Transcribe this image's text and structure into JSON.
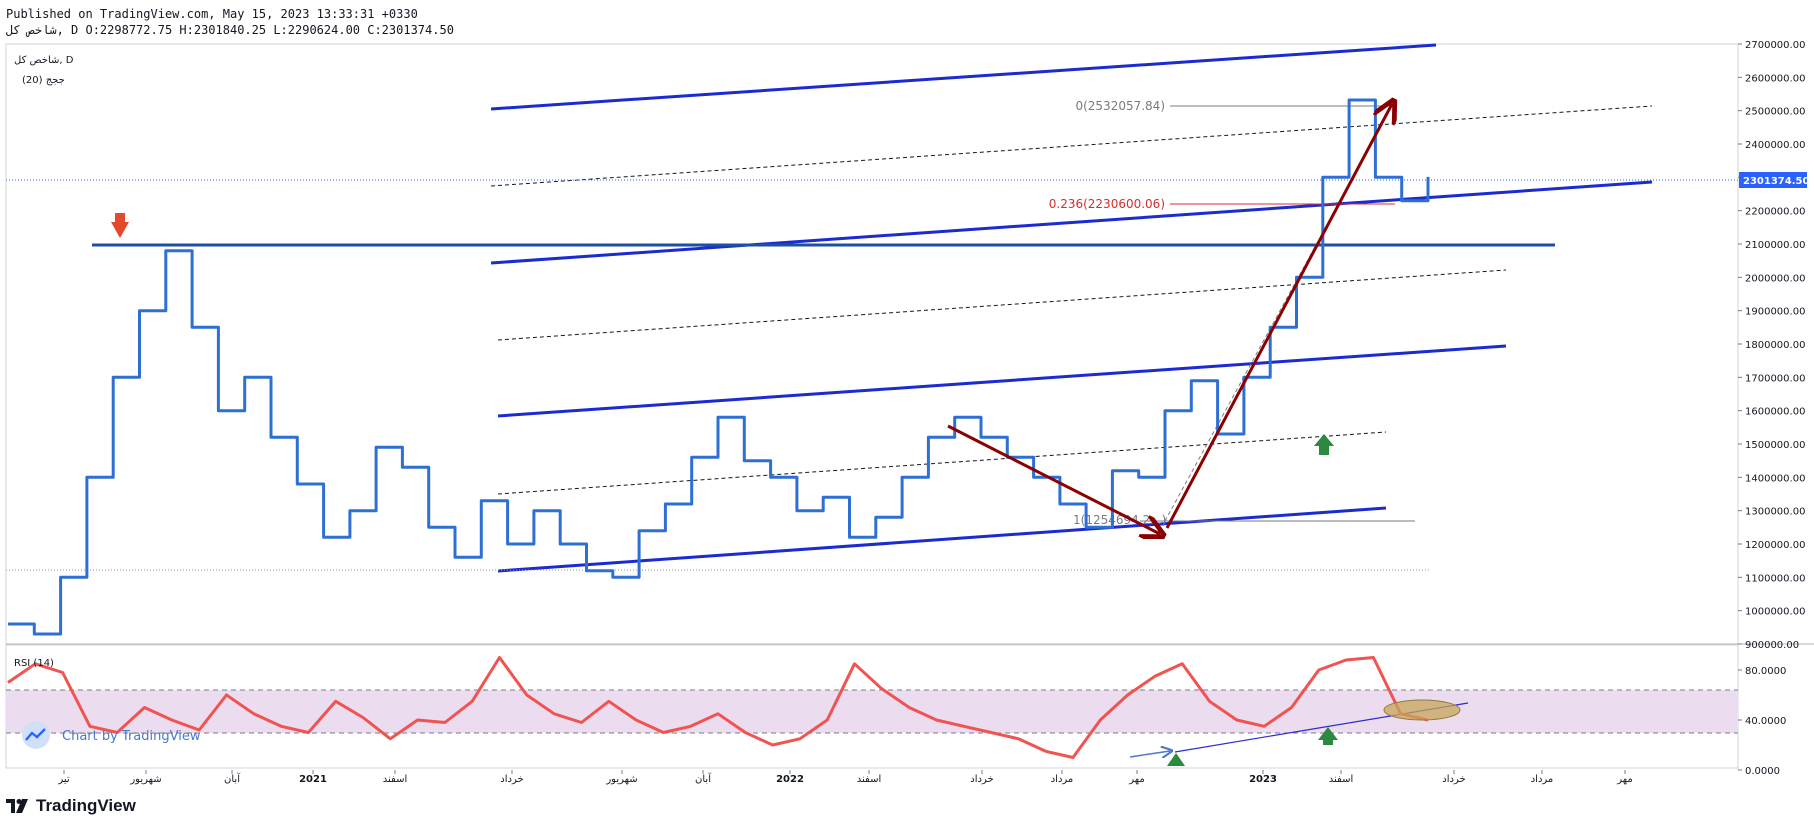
{
  "header": {
    "published": "Published on TradingView.com, May 15, 2023 13:33:31 +0330",
    "ohlc": "شاخص كل, D O:2298772.75 H:2301840.25 L:2290624.00 C:2301374.50"
  },
  "legend": {
    "symbol": "شاخص كل, D",
    "indicator": "ججج (20)"
  },
  "rsi_label": "RSI (14)",
  "watermark": "Chart by TradingView",
  "brand": "TradingView",
  "colors": {
    "price": "#2e6fd4",
    "rsi": "#f05350",
    "channel": "#1b2bd0",
    "arrow": "#8b0000",
    "hline": "#1e4fa0",
    "band": "#ecdcef",
    "last_price_bg": "#2962ff",
    "fib": "#d32f2f"
  },
  "annotations": {
    "fib0": "0(2532057.84)",
    "fib236": "0.236(2230600.06)",
    "fib1": "1(1254694.2...)",
    "last_price": "2301374.50"
  },
  "chart_data": [
    {
      "type": "line",
      "title": "",
      "series": [
        {
          "values": [
            960000,
            930000,
            1100000,
            1400000,
            1700000,
            1900000,
            2080000,
            1850000,
            1600000,
            1700000,
            1520000,
            1380000,
            1220000,
            1300000,
            1490000,
            1430000,
            1250000,
            1160000,
            1330000,
            1200000,
            1300000,
            1200000,
            1120000,
            1100000,
            1240000,
            1320000,
            1460000,
            1580000,
            1450000,
            1400000,
            1300000,
            1340000,
            1220000,
            1280000,
            1400000,
            1520000,
            1580000,
            1520000,
            1460000,
            1400000,
            1320000,
            1250000,
            1420000,
            1400000,
            1600000,
            1690000,
            1530000,
            1700000,
            1850000,
            2000000,
            2300000,
            2532058,
            2300000,
            2230000,
            2301374
          ]
        }
      ],
      "ylim": [
        900000,
        2700000
      ],
      "y_ticks": [
        "2700000.00",
        "2600000.00",
        "2500000.00",
        "2400000.00",
        "2300000.00",
        "2200000.00",
        "2100000.00",
        "2000000.00",
        "1900000.00",
        "1800000.00",
        "1700000.00",
        "1600000.00",
        "1500000.00",
        "1400000.00",
        "1300000.00",
        "1200000.00",
        "1100000.00",
        "1000000.00",
        "900000.00"
      ]
    },
    {
      "type": "line",
      "title": "RSI (14)",
      "series": [
        {
          "values": [
            70,
            85,
            78,
            35,
            30,
            50,
            40,
            32,
            60,
            45,
            35,
            30,
            55,
            42,
            25,
            40,
            38,
            55,
            90,
            60,
            45,
            38,
            55,
            40,
            30,
            35,
            45,
            30,
            20,
            25,
            40,
            85,
            65,
            50,
            40,
            35,
            30,
            25,
            15,
            10,
            40,
            60,
            75,
            85,
            55,
            40,
            35,
            50,
            80,
            88,
            90,
            45,
            40
          ]
        }
      ],
      "ylim": [
        0,
        100
      ],
      "y_ticks": [
        "80.0000",
        "40.0000",
        "0.0000"
      ]
    }
  ],
  "x_ticks": [
    "تیر",
    "شهریور",
    "آبان",
    "2021",
    "اسفند",
    "خرداد",
    "شهریور",
    "آبان",
    "2022",
    "اسفند",
    "خرداد",
    "مرداد",
    "مهر",
    "2023",
    "اسفند",
    "خرداد",
    "مرداد",
    "مهر"
  ]
}
